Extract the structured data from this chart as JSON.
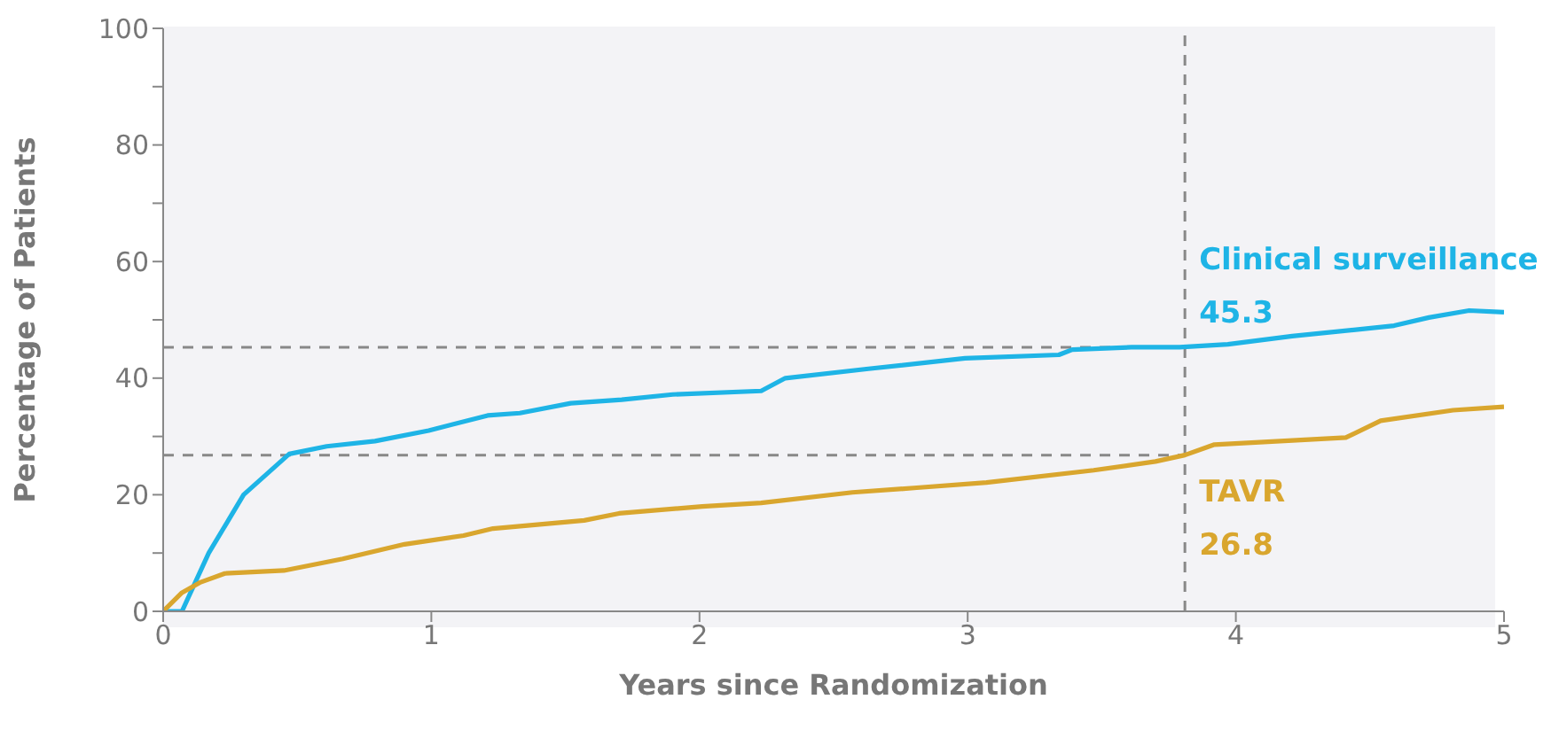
{
  "chart_data": {
    "type": "line",
    "xlabel": "Years since Randomization",
    "ylabel": "Percentage of Patients",
    "xlim": [
      0,
      5
    ],
    "xticks": [
      0,
      1,
      2,
      3,
      4,
      5
    ],
    "ylim": [
      0,
      100
    ],
    "yticks": [
      0,
      {
        "value": 10,
        "label": null
      },
      20,
      {
        "value": 30,
        "label": null
      },
      40,
      {
        "value": 50,
        "label": null
      },
      60,
      {
        "value": 70,
        "label": null
      },
      80,
      {
        "value": 90,
        "label": null
      },
      100
    ],
    "marker": "none",
    "line_style": "solid",
    "series": [
      {
        "name": "Clinical surveillance",
        "color": "#1eb4e6",
        "x": [
          0,
          0.07,
          0.17,
          0.3,
          0.47,
          0.61,
          0.79,
          0.99,
          1.21,
          1.33,
          1.52,
          1.71,
          1.9,
          2.23,
          2.32,
          2.63,
          2.99,
          3.34,
          3.39,
          3.61,
          3.79,
          3.97,
          4.21,
          4.59,
          4.72,
          4.87,
          5.0
        ],
        "values": [
          0,
          0,
          10,
          20,
          27,
          28.3,
          29.2,
          31,
          33.6,
          34,
          35.7,
          36.3,
          37.2,
          37.8,
          40,
          41.6,
          43.4,
          44,
          44.9,
          45.3,
          45.3,
          45.8,
          47.2,
          49,
          50.4,
          51.6,
          51.3
        ]
      },
      {
        "name": "TAVR",
        "color": "#d9a62e",
        "x": [
          0,
          0.07,
          0.14,
          0.23,
          0.45,
          0.67,
          0.9,
          1.12,
          1.23,
          1.57,
          1.7,
          2.01,
          2.23,
          2.57,
          2.81,
          3.07,
          3.47,
          3.7,
          3.81,
          3.92,
          4.41,
          4.54,
          4.81,
          5.0
        ],
        "values": [
          0,
          3.2,
          5,
          6.5,
          7,
          9,
          11.5,
          13,
          14.2,
          15.6,
          16.8,
          18,
          18.6,
          20.4,
          21.2,
          22.1,
          24.2,
          25.7,
          26.8,
          28.6,
          29.8,
          32.7,
          34.5,
          35.1
        ]
      }
    ],
    "ref_lines": [
      {
        "axis": "x",
        "value": 3.81,
        "color": "#888888",
        "line_style": "dashed"
      },
      {
        "axis": "y",
        "value": 45.3,
        "color": "#888888",
        "line_style": "dashed"
      },
      {
        "axis": "y",
        "value": 26.8,
        "color": "#888888",
        "line_style": "dashed"
      }
    ],
    "annotations": [
      {
        "text": "45.3",
        "x": 3.81,
        "y": 45.3
      },
      {
        "text": "26.8",
        "x": 3.81,
        "y": 26.8
      }
    ]
  }
}
